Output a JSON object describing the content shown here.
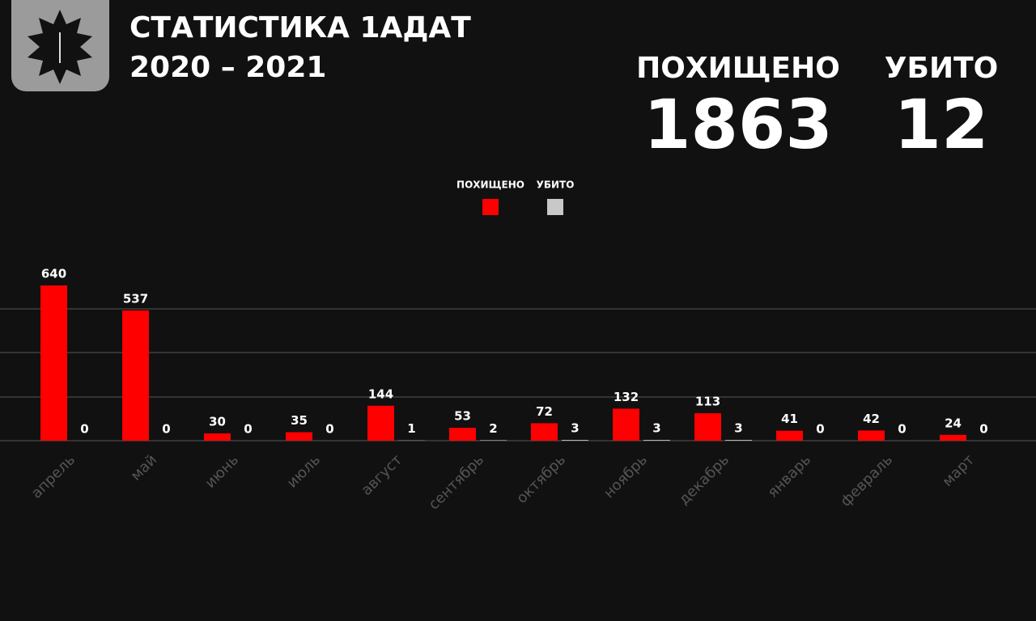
{
  "chart_data": {
    "type": "bar",
    "title": "СТАТИСТИКА 1АДАТ",
    "subtitle": "2020 – 2021",
    "summary": [
      {
        "label": "ПОХИЩЕНО",
        "value": 1863
      },
      {
        "label": "УБИТО",
        "value": 12
      }
    ],
    "categories": [
      "апрель",
      "май",
      "июнь",
      "июль",
      "август",
      "сентябрь",
      "октябрь",
      "ноябрь",
      "декабрь",
      "январь",
      "февраль",
      "март"
    ],
    "series": [
      {
        "name": "ПОХИЩЕНО",
        "color": "#fe0000",
        "values": [
          640,
          537,
          30,
          35,
          144,
          53,
          72,
          132,
          113,
          41,
          42,
          24
        ]
      },
      {
        "name": "УБИТО",
        "color": "#c8c8c8",
        "values": [
          0,
          0,
          0,
          0,
          1,
          2,
          3,
          3,
          3,
          0,
          0,
          0
        ]
      }
    ]
  }
}
